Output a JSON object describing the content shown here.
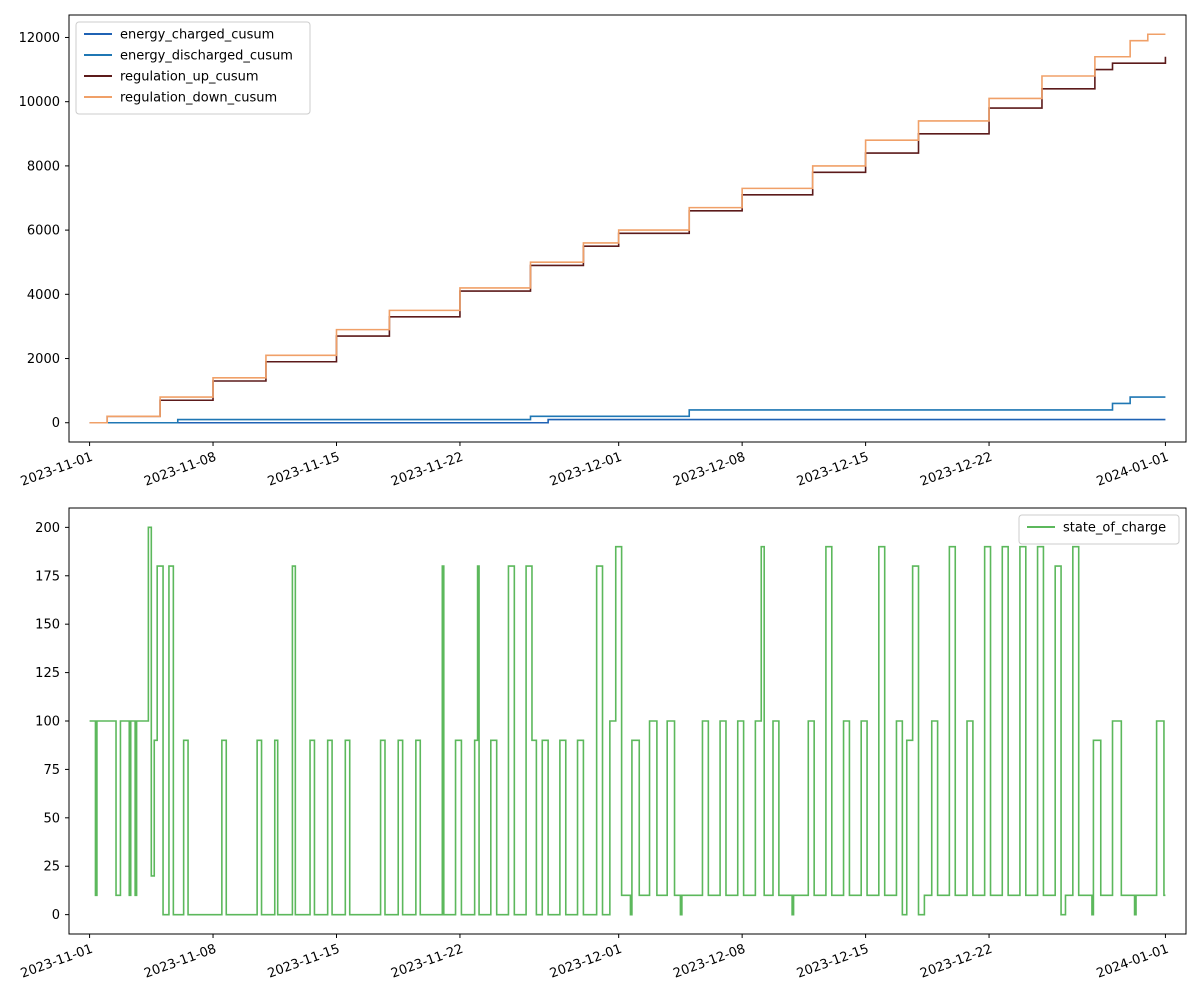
{
  "chart_data": [
    {
      "type": "line",
      "title": "",
      "xlabel": "",
      "ylabel": "",
      "x_axis": "date",
      "xlim": [
        "2023-10-30 20:00",
        "2024-01-02 04:00"
      ],
      "ylim": [
        -600,
        12700
      ],
      "xticks": [
        "2023-11-01",
        "2023-11-08",
        "2023-11-15",
        "2023-11-22",
        "2023-12-01",
        "2023-12-08",
        "2023-12-15",
        "2023-12-22",
        "2024-01-01"
      ],
      "yticks": [
        0,
        2000,
        4000,
        6000,
        8000,
        10000,
        12000
      ],
      "grid": false,
      "legend_position": "upper-left",
      "series": [
        {
          "name": "energy_charged_cusum",
          "color": "#1f62b4",
          "step": true,
          "points": [
            [
              "2023-11-01",
              0
            ],
            [
              "2023-11-27",
              0
            ],
            [
              "2023-11-27",
              100
            ],
            [
              "2024-01-01",
              100
            ]
          ]
        },
        {
          "name": "energy_discharged_cusum",
          "color": "#1f77b4",
          "step": true,
          "points": [
            [
              "2023-11-01",
              0
            ],
            [
              "2023-11-06",
              0
            ],
            [
              "2023-11-06",
              100
            ],
            [
              "2023-11-26",
              100
            ],
            [
              "2023-11-26",
              200
            ],
            [
              "2023-12-02",
              200
            ],
            [
              "2023-12-05",
              200
            ],
            [
              "2023-12-05",
              400
            ],
            [
              "2023-12-29",
              400
            ],
            [
              "2023-12-29",
              600
            ],
            [
              "2023-12-30",
              600
            ],
            [
              "2023-12-30",
              800
            ],
            [
              "2024-01-01",
              800
            ]
          ]
        },
        {
          "name": "regulation_up_cusum",
          "color": "#5c1a1a",
          "step": true,
          "points": [
            [
              "2023-11-01",
              0
            ],
            [
              "2023-11-02",
              200
            ],
            [
              "2023-11-05",
              700
            ],
            [
              "2023-11-08",
              1300
            ],
            [
              "2023-11-11",
              1900
            ],
            [
              "2023-11-15",
              2700
            ],
            [
              "2023-11-18",
              3300
            ],
            [
              "2023-11-22",
              4100
            ],
            [
              "2023-11-26",
              4900
            ],
            [
              "2023-11-29",
              5500
            ],
            [
              "2023-12-01",
              5900
            ],
            [
              "2023-12-05",
              6600
            ],
            [
              "2023-12-08",
              7100
            ],
            [
              "2023-12-12",
              7800
            ],
            [
              "2023-12-15",
              8400
            ],
            [
              "2023-12-18",
              9000
            ],
            [
              "2023-12-22",
              9800
            ],
            [
              "2023-12-25",
              10400
            ],
            [
              "2023-12-28",
              11000
            ],
            [
              "2023-12-29",
              11200
            ],
            [
              "2023-12-31",
              11200
            ],
            [
              "2024-01-01",
              11400
            ]
          ]
        },
        {
          "name": "regulation_down_cusum",
          "color": "#f0a068",
          "step": true,
          "points": [
            [
              "2023-11-01",
              0
            ],
            [
              "2023-11-02",
              200
            ],
            [
              "2023-11-05",
              800
            ],
            [
              "2023-11-08",
              1400
            ],
            [
              "2023-11-11",
              2100
            ],
            [
              "2023-11-15",
              2900
            ],
            [
              "2023-11-18",
              3500
            ],
            [
              "2023-11-22",
              4200
            ],
            [
              "2023-11-26",
              5000
            ],
            [
              "2023-11-29",
              5600
            ],
            [
              "2023-12-01",
              6000
            ],
            [
              "2023-12-05",
              6700
            ],
            [
              "2023-12-08",
              7300
            ],
            [
              "2023-12-12",
              8000
            ],
            [
              "2023-12-15",
              8800
            ],
            [
              "2023-12-18",
              9400
            ],
            [
              "2023-12-22",
              10100
            ],
            [
              "2023-12-25",
              10800
            ],
            [
              "2023-12-28",
              11400
            ],
            [
              "2023-12-30",
              11900
            ],
            [
              "2023-12-31",
              12100
            ],
            [
              "2024-01-01",
              12100
            ]
          ]
        }
      ]
    },
    {
      "type": "line",
      "title": "",
      "xlabel": "",
      "ylabel": "",
      "x_axis": "date",
      "xlim": [
        "2023-10-30 20:00",
        "2024-01-02 04:00"
      ],
      "ylim": [
        -10,
        210
      ],
      "xticks": [
        "2023-11-01",
        "2023-11-08",
        "2023-11-15",
        "2023-11-22",
        "2023-12-01",
        "2023-12-08",
        "2023-12-15",
        "2023-12-22",
        "2024-01-01"
      ],
      "yticks": [
        0,
        25,
        50,
        75,
        100,
        125,
        150,
        175,
        200
      ],
      "grid": false,
      "legend_position": "upper-right",
      "series": [
        {
          "name": "state_of_charge",
          "color": "#5cb85c",
          "step": true,
          "points": [
            [
              "2023-11-01 00:00",
              100
            ],
            [
              "2023-11-01 08:00",
              10
            ],
            [
              "2023-11-01 10:00",
              100
            ],
            [
              "2023-11-02 12:00",
              10
            ],
            [
              "2023-11-02 18:00",
              100
            ],
            [
              "2023-11-03 06:00",
              10
            ],
            [
              "2023-11-03 08:00",
              100
            ],
            [
              "2023-11-03 14:00",
              10
            ],
            [
              "2023-11-03 16:00",
              100
            ],
            [
              "2023-11-04 08:00",
              200
            ],
            [
              "2023-11-04 12:00",
              20
            ],
            [
              "2023-11-04 16:00",
              90
            ],
            [
              "2023-11-04 20:00",
              180
            ],
            [
              "2023-11-05 04:00",
              0
            ],
            [
              "2023-11-05 12:00",
              180
            ],
            [
              "2023-11-05 18:00",
              0
            ],
            [
              "2023-11-06 08:00",
              90
            ],
            [
              "2023-11-06 14:00",
              0
            ],
            [
              "2023-11-08 12:00",
              90
            ],
            [
              "2023-11-08 18:00",
              0
            ],
            [
              "2023-11-10 12:00",
              90
            ],
            [
              "2023-11-10 18:00",
              0
            ],
            [
              "2023-11-11 12:00",
              90
            ],
            [
              "2023-11-11 16:00",
              0
            ],
            [
              "2023-11-12 12:00",
              180
            ],
            [
              "2023-11-12 16:00",
              0
            ],
            [
              "2023-11-13 12:00",
              90
            ],
            [
              "2023-11-13 18:00",
              0
            ],
            [
              "2023-11-14 12:00",
              90
            ],
            [
              "2023-11-14 18:00",
              0
            ],
            [
              "2023-11-15 12:00",
              90
            ],
            [
              "2023-11-15 18:00",
              0
            ],
            [
              "2023-11-17 12:00",
              90
            ],
            [
              "2023-11-17 18:00",
              0
            ],
            [
              "2023-11-18 12:00",
              90
            ],
            [
              "2023-11-18 18:00",
              0
            ],
            [
              "2023-11-19 12:00",
              90
            ],
            [
              "2023-11-19 18:00",
              0
            ],
            [
              "2023-11-21 00:00",
              180
            ],
            [
              "2023-11-21 02:00",
              0
            ],
            [
              "2023-11-21 18:00",
              90
            ],
            [
              "2023-11-22 02:00",
              0
            ],
            [
              "2023-11-22 20:00",
              90
            ],
            [
              "2023-11-23 00:00",
              180
            ],
            [
              "2023-11-23 02:00",
              0
            ],
            [
              "2023-11-23 18:00",
              90
            ],
            [
              "2023-11-24 02:00",
              0
            ],
            [
              "2023-11-24 18:00",
              180
            ],
            [
              "2023-11-25 02:00",
              0
            ],
            [
              "2023-11-25 18:00",
              180
            ],
            [
              "2023-11-26 02:00",
              90
            ],
            [
              "2023-11-26 08:00",
              0
            ],
            [
              "2023-11-26 16:00",
              90
            ],
            [
              "2023-11-27 00:00",
              0
            ],
            [
              "2023-11-27 16:00",
              90
            ],
            [
              "2023-11-28 00:00",
              0
            ],
            [
              "2023-11-28 16:00",
              90
            ],
            [
              "2023-11-29 00:00",
              0
            ],
            [
              "2023-11-29 18:00",
              180
            ],
            [
              "2023-11-30 02:00",
              0
            ],
            [
              "2023-11-30 12:00",
              100
            ],
            [
              "2023-11-30 20:00",
              190
            ],
            [
              "2023-12-01 04:00",
              10
            ],
            [
              "2023-12-01 16:00",
              0
            ],
            [
              "2023-12-01 18:00",
              90
            ],
            [
              "2023-12-02 04:00",
              10
            ],
            [
              "2023-12-02 18:00",
              100
            ],
            [
              "2023-12-03 04:00",
              10
            ],
            [
              "2023-12-03 18:00",
              100
            ],
            [
              "2023-12-04 04:00",
              10
            ],
            [
              "2023-12-04 12:00",
              0
            ],
            [
              "2023-12-04 14:00",
              10
            ],
            [
              "2023-12-05 18:00",
              100
            ],
            [
              "2023-12-06 02:00",
              10
            ],
            [
              "2023-12-06 18:00",
              100
            ],
            [
              "2023-12-07 02:00",
              10
            ],
            [
              "2023-12-07 18:00",
              100
            ],
            [
              "2023-12-08 02:00",
              10
            ],
            [
              "2023-12-08 18:00",
              100
            ],
            [
              "2023-12-09 02:00",
              190
            ],
            [
              "2023-12-09 06:00",
              10
            ],
            [
              "2023-12-09 18:00",
              100
            ],
            [
              "2023-12-10 02:00",
              10
            ],
            [
              "2023-12-10 20:00",
              0
            ],
            [
              "2023-12-10 22:00",
              10
            ],
            [
              "2023-12-11 18:00",
              100
            ],
            [
              "2023-12-12 02:00",
              10
            ],
            [
              "2023-12-12 18:00",
              190
            ],
            [
              "2023-12-13 02:00",
              10
            ],
            [
              "2023-12-13 18:00",
              100
            ],
            [
              "2023-12-14 02:00",
              10
            ],
            [
              "2023-12-14 18:00",
              100
            ],
            [
              "2023-12-15 02:00",
              10
            ],
            [
              "2023-12-15 18:00",
              190
            ],
            [
              "2023-12-16 02:00",
              10
            ],
            [
              "2023-12-16 18:00",
              100
            ],
            [
              "2023-12-17 02:00",
              0
            ],
            [
              "2023-12-17 08:00",
              90
            ],
            [
              "2023-12-17 16:00",
              180
            ],
            [
              "2023-12-18 00:00",
              0
            ],
            [
              "2023-12-18 08:00",
              10
            ],
            [
              "2023-12-18 18:00",
              100
            ],
            [
              "2023-12-19 02:00",
              10
            ],
            [
              "2023-12-19 18:00",
              190
            ],
            [
              "2023-12-20 02:00",
              10
            ],
            [
              "2023-12-20 18:00",
              100
            ],
            [
              "2023-12-21 02:00",
              10
            ],
            [
              "2023-12-21 18:00",
              190
            ],
            [
              "2023-12-22 02:00",
              10
            ],
            [
              "2023-12-22 18:00",
              190
            ],
            [
              "2023-12-23 02:00",
              10
            ],
            [
              "2023-12-23 18:00",
              190
            ],
            [
              "2023-12-24 02:00",
              10
            ],
            [
              "2023-12-24 18:00",
              190
            ],
            [
              "2023-12-25 02:00",
              10
            ],
            [
              "2023-12-25 18:00",
              180
            ],
            [
              "2023-12-26 02:00",
              0
            ],
            [
              "2023-12-26 08:00",
              10
            ],
            [
              "2023-12-26 18:00",
              190
            ],
            [
              "2023-12-27 02:00",
              10
            ],
            [
              "2023-12-27 20:00",
              0
            ],
            [
              "2023-12-27 22:00",
              90
            ],
            [
              "2023-12-28 08:00",
              10
            ],
            [
              "2023-12-29 00:00",
              100
            ],
            [
              "2023-12-29 12:00",
              10
            ],
            [
              "2023-12-30 06:00",
              0
            ],
            [
              "2023-12-30 08:00",
              10
            ],
            [
              "2023-12-31 12:00",
              100
            ],
            [
              "2023-12-31 22:00",
              10
            ],
            [
              "2024-01-01 00:00",
              10
            ]
          ]
        }
      ]
    }
  ]
}
